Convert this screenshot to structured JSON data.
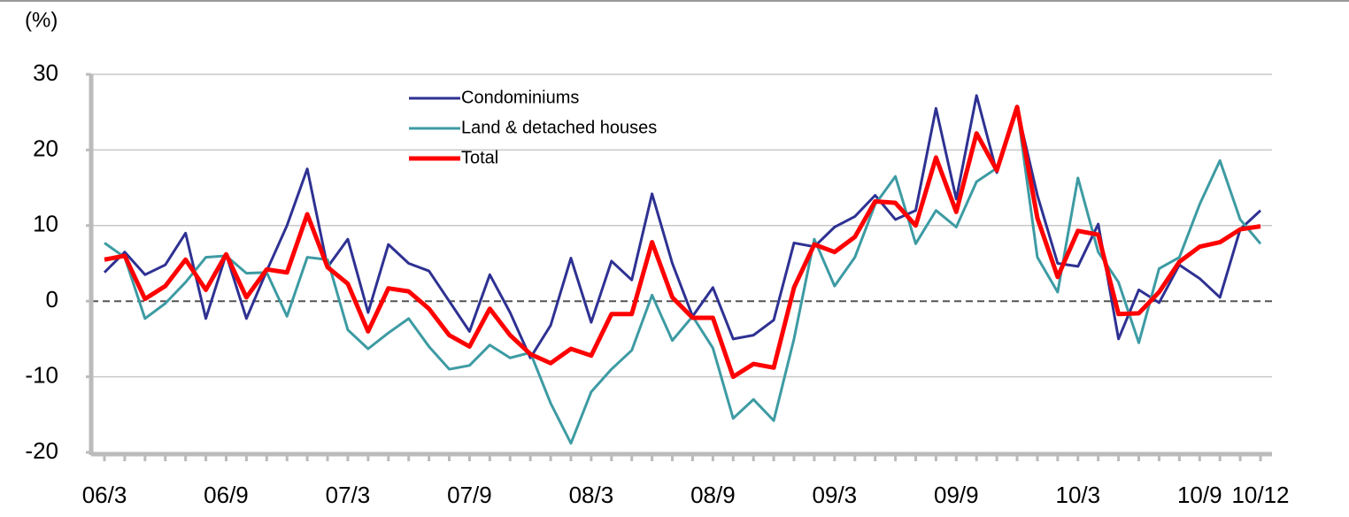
{
  "chart_data": {
    "type": "line",
    "y_label": "(%)",
    "categories": [
      "06/3",
      null,
      null,
      null,
      null,
      null,
      "06/9",
      null,
      null,
      null,
      null,
      null,
      "07/3",
      null,
      null,
      null,
      null,
      null,
      "07/9",
      null,
      null,
      null,
      null,
      null,
      "08/3",
      null,
      null,
      null,
      null,
      null,
      "08/9",
      null,
      null,
      null,
      null,
      null,
      "09/3",
      null,
      null,
      null,
      null,
      null,
      "09/9",
      null,
      null,
      null,
      null,
      null,
      "10/3",
      null,
      null,
      null,
      null,
      null,
      "10/9",
      null,
      null,
      "10/12"
    ],
    "series": [
      {
        "name": "Condominiums",
        "color": "#2e3192",
        "width": 3,
        "values": [
          3.8,
          6.5,
          3.5,
          4.8,
          9,
          -2.3,
          6.2,
          -2.3,
          4,
          10,
          17.5,
          4.5,
          8.2,
          -1.5,
          7.5,
          5,
          4,
          0,
          -4,
          3.5,
          -1.5,
          -7.5,
          -3.2,
          5.7,
          -2.8,
          5.3,
          2.8,
          14.2,
          5,
          -2,
          1.8,
          -5,
          -4.5,
          -2.5,
          7.7,
          7.2,
          9.8,
          11.2,
          14,
          10.8,
          12,
          25.5,
          13.5,
          27.2,
          17,
          25.5,
          14,
          5,
          4.6,
          10.2,
          -5,
          1.5,
          -0.2,
          4.8,
          3,
          0.5,
          9.5,
          12
        ]
      },
      {
        "name": "Land & detached houses",
        "color": "#3d9ba3",
        "width": 3,
        "values": [
          7.7,
          5.8,
          -2.3,
          -0.3,
          2.5,
          5.8,
          6,
          3.7,
          3.8,
          -2,
          5.8,
          5.5,
          -3.8,
          -6.3,
          -4.2,
          -2.3,
          -6,
          -9,
          -8.5,
          -5.8,
          -7.5,
          -6.8,
          -13.5,
          -18.8,
          -12,
          -9,
          -6.5,
          0.8,
          -5.2,
          -2,
          -6.2,
          -15.5,
          -13,
          -15.8,
          -5,
          8.2,
          2,
          5.8,
          12.8,
          16.5,
          7.6,
          12,
          9.8,
          15.8,
          17.6,
          25.5,
          5.8,
          1.2,
          16.3,
          6.5,
          2.5,
          -5.5,
          4.3,
          5.8,
          12.8,
          18.6,
          10.8,
          7.6
        ]
      },
      {
        "name": "Total",
        "color": "#ff0000",
        "width": 5,
        "values": [
          5.5,
          6,
          0.3,
          2,
          5.5,
          1.5,
          6.2,
          0.5,
          4.2,
          3.8,
          11.5,
          4.5,
          2.3,
          -4,
          1.7,
          1.3,
          -1,
          -4.5,
          -6,
          -1,
          -4.5,
          -7,
          -8.2,
          -6.3,
          -7.2,
          -1.7,
          -1.7,
          7.8,
          0.5,
          -2.2,
          -2.2,
          -10,
          -8.3,
          -8.8,
          1.8,
          7.5,
          6.5,
          8.5,
          13.2,
          13,
          10,
          19,
          11.8,
          22.2,
          17.3,
          25.7,
          11,
          3.2,
          9.3,
          8.8,
          -1.7,
          -1.6,
          1.2,
          5.2,
          7.2,
          7.8,
          9.5,
          9.9
        ]
      }
    ],
    "ylim": [
      -20,
      30
    ],
    "yticks": [
      -20,
      -10,
      0,
      10,
      20,
      30
    ],
    "grid": true
  }
}
